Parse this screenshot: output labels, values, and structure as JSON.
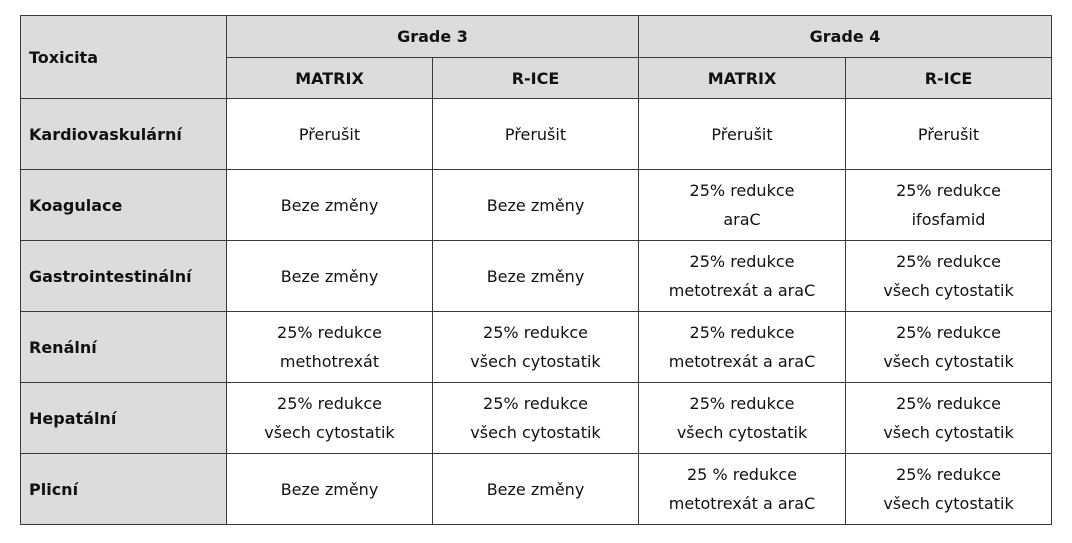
{
  "header": {
    "corner": "Toxicita",
    "groups": [
      "Grade 3",
      "Grade 4"
    ],
    "subcolumns": [
      "MATRIX",
      "R-ICE",
      "MATRIX",
      "R-ICE"
    ]
  },
  "rows": [
    {
      "label": "Kardiovaskulární",
      "cells": [
        [
          "Přerušit"
        ],
        [
          "Přerušit"
        ],
        [
          "Přerušit"
        ],
        [
          "Přerušit"
        ]
      ]
    },
    {
      "label": "Koagulace",
      "cells": [
        [
          "Beze změny"
        ],
        [
          "Beze změny"
        ],
        [
          "25% redukce",
          "araC"
        ],
        [
          "25% redukce",
          "ifosfamid"
        ]
      ]
    },
    {
      "label": "Gastrointestinální",
      "cells": [
        [
          "Beze změny"
        ],
        [
          "Beze změny"
        ],
        [
          "25% redukce",
          "metotrexát a araC"
        ],
        [
          "25% redukce",
          "všech cytostatik"
        ]
      ]
    },
    {
      "label": "Renální",
      "cells": [
        [
          "25% redukce",
          "methotrexát"
        ],
        [
          "25% redukce",
          "všech cytostatik"
        ],
        [
          "25% redukce",
          "metotrexát a araC"
        ],
        [
          "25% redukce",
          "všech cytostatik"
        ]
      ]
    },
    {
      "label": "Hepatální",
      "cells": [
        [
          "25% redukce",
          "všech cytostatik"
        ],
        [
          "25% redukce",
          "všech cytostatik"
        ],
        [
          "25% redukce",
          "všech cytostatik"
        ],
        [
          "25% redukce",
          "všech cytostatik"
        ]
      ]
    },
    {
      "label": "Plicní",
      "cells": [
        [
          "Beze změny"
        ],
        [
          "Beze změny"
        ],
        [
          "25 % redukce",
          "metotrexát a araC"
        ],
        [
          "25% redukce",
          "všech cytostatik"
        ]
      ]
    }
  ]
}
